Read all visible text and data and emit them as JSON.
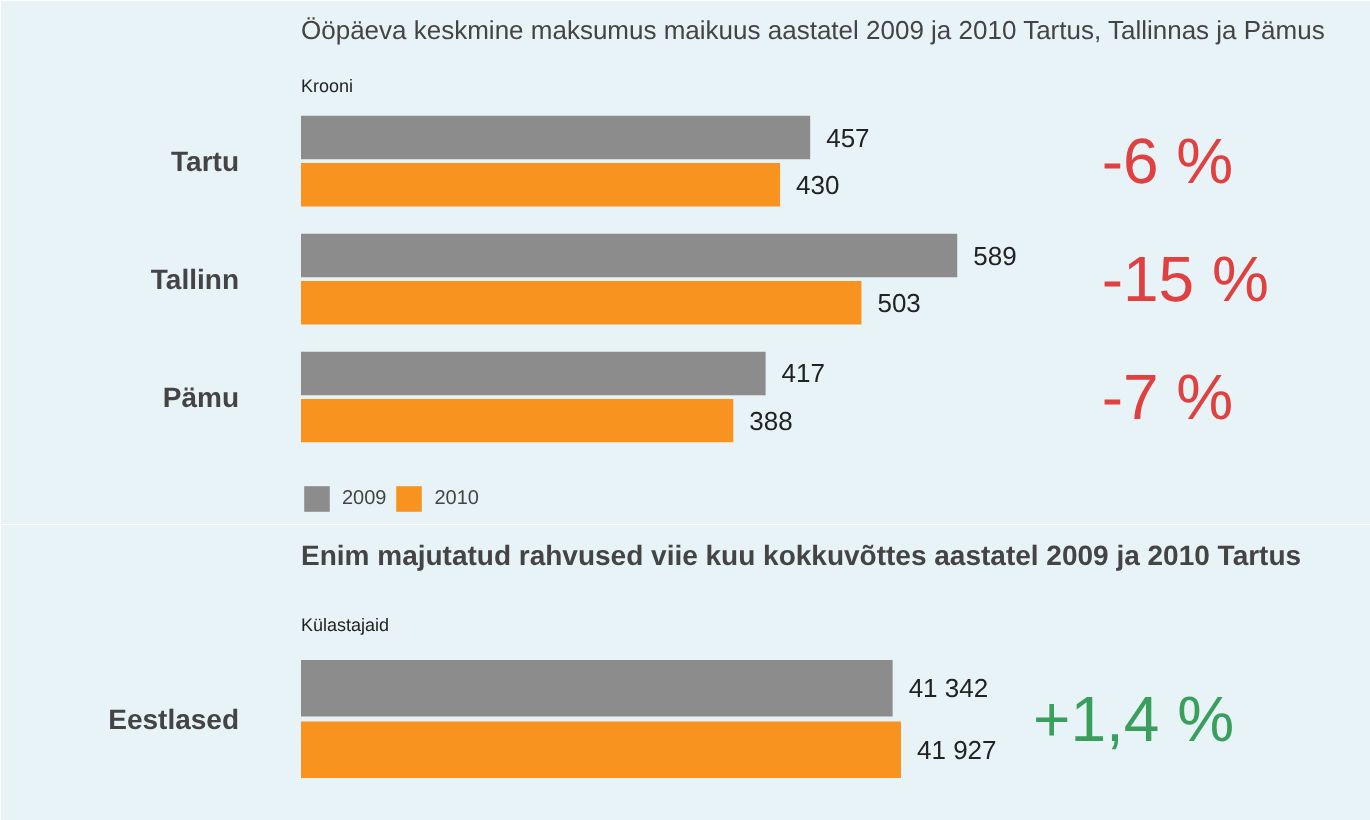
{
  "chart_data": [
    {
      "type": "bar",
      "orientation": "horizontal",
      "title": "Ööpäeva keskmine maksumus maikuus aastatel 2009 ja 2010 Tartus, Tallinnas ja Pämus",
      "subtitle": "Krooni",
      "categories": [
        "Tartu",
        "Tallinn",
        "Pämu"
      ],
      "series": [
        {
          "name": "2009",
          "color": "#8c8c8c",
          "values": [
            457,
            589,
            417
          ]
        },
        {
          "name": "2010",
          "color": "#f7931e",
          "values": [
            430,
            503,
            388
          ]
        }
      ],
      "data_labels": true,
      "legend": "bottom",
      "annotations": [
        "-6 %",
        "-15 %",
        "-7 %"
      ]
    },
    {
      "type": "bar",
      "orientation": "horizontal",
      "title": "Enim majutatud rahvused viie kuu kokkuvõttes aastatel 2009 ja 2010 Tartus",
      "subtitle": "Külastajaid",
      "categories": [
        "Eestlased"
      ],
      "series": [
        {
          "color": "#8c8c8c",
          "values": [
            41342
          ],
          "value_labels": [
            "41 342"
          ]
        },
        {
          "color": "#f7931e",
          "values": [
            41927
          ],
          "value_labels": [
            "41 927"
          ]
        }
      ],
      "annotations": [
        "+1,4 %"
      ]
    }
  ]
}
